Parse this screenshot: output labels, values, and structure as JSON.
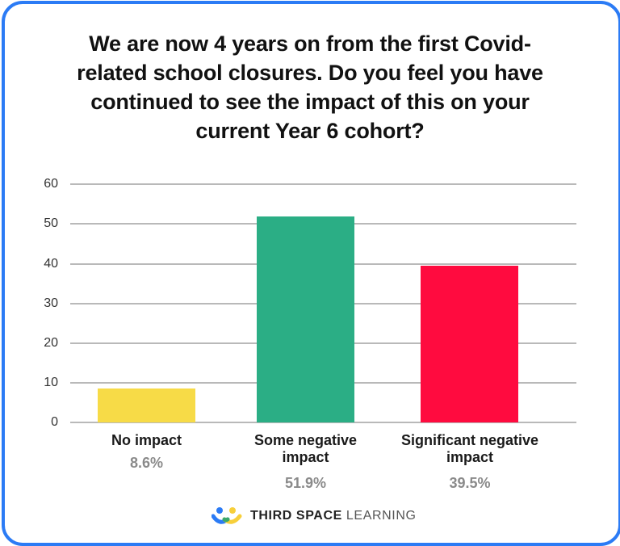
{
  "title": "We are now 4 years on from the first Covid-related school closures. Do you feel you have continued to see the impact of this on your current Year 6 cohort?",
  "title_lines": [
    "We are now 4 years on from the first Covid-",
    "related school closures. Do you feel you have",
    "continued to see the impact of this on your",
    "current Year 6 cohort?"
  ],
  "colors": {
    "frame_border": "#2b7bf5",
    "no_impact": "#f7db47",
    "some_negative": "#2bae85",
    "significant_negative": "#ff0b3f",
    "gridline": "#b9b9b9",
    "percent_text": "#8a8a8a"
  },
  "y_axis": {
    "ticks": [
      "60",
      "50",
      "40",
      "30",
      "20",
      "10",
      "0"
    ]
  },
  "categories": [
    {
      "label_line1": "No impact",
      "label_line2": "",
      "percent": "8.6%"
    },
    {
      "label_line1": "Some negative",
      "label_line2": "impact",
      "percent": "51.9%"
    },
    {
      "label_line1": "Significant negative",
      "label_line2": "impact",
      "percent": "39.5%"
    }
  ],
  "footer": {
    "logo_bold": "THIRD SPACE",
    "logo_light": "LEARNING"
  },
  "chart_data": {
    "type": "bar",
    "title": "We are now 4 years on from the first Covid-related school closures. Do you feel you have continued to see the impact of this on your current Year 6 cohort?",
    "categories": [
      "No impact",
      "Some negative impact",
      "Significant negative impact"
    ],
    "values": [
      8.6,
      51.9,
      39.5
    ],
    "value_labels": [
      "8.6%",
      "51.9%",
      "39.5%"
    ],
    "colors": [
      "#f7db47",
      "#2bae85",
      "#ff0b3f"
    ],
    "xlabel": "",
    "ylabel": "",
    "ylim": [
      0,
      60
    ],
    "yticks": [
      0,
      10,
      20,
      30,
      40,
      50,
      60
    ],
    "grid": true,
    "legend": "none"
  }
}
